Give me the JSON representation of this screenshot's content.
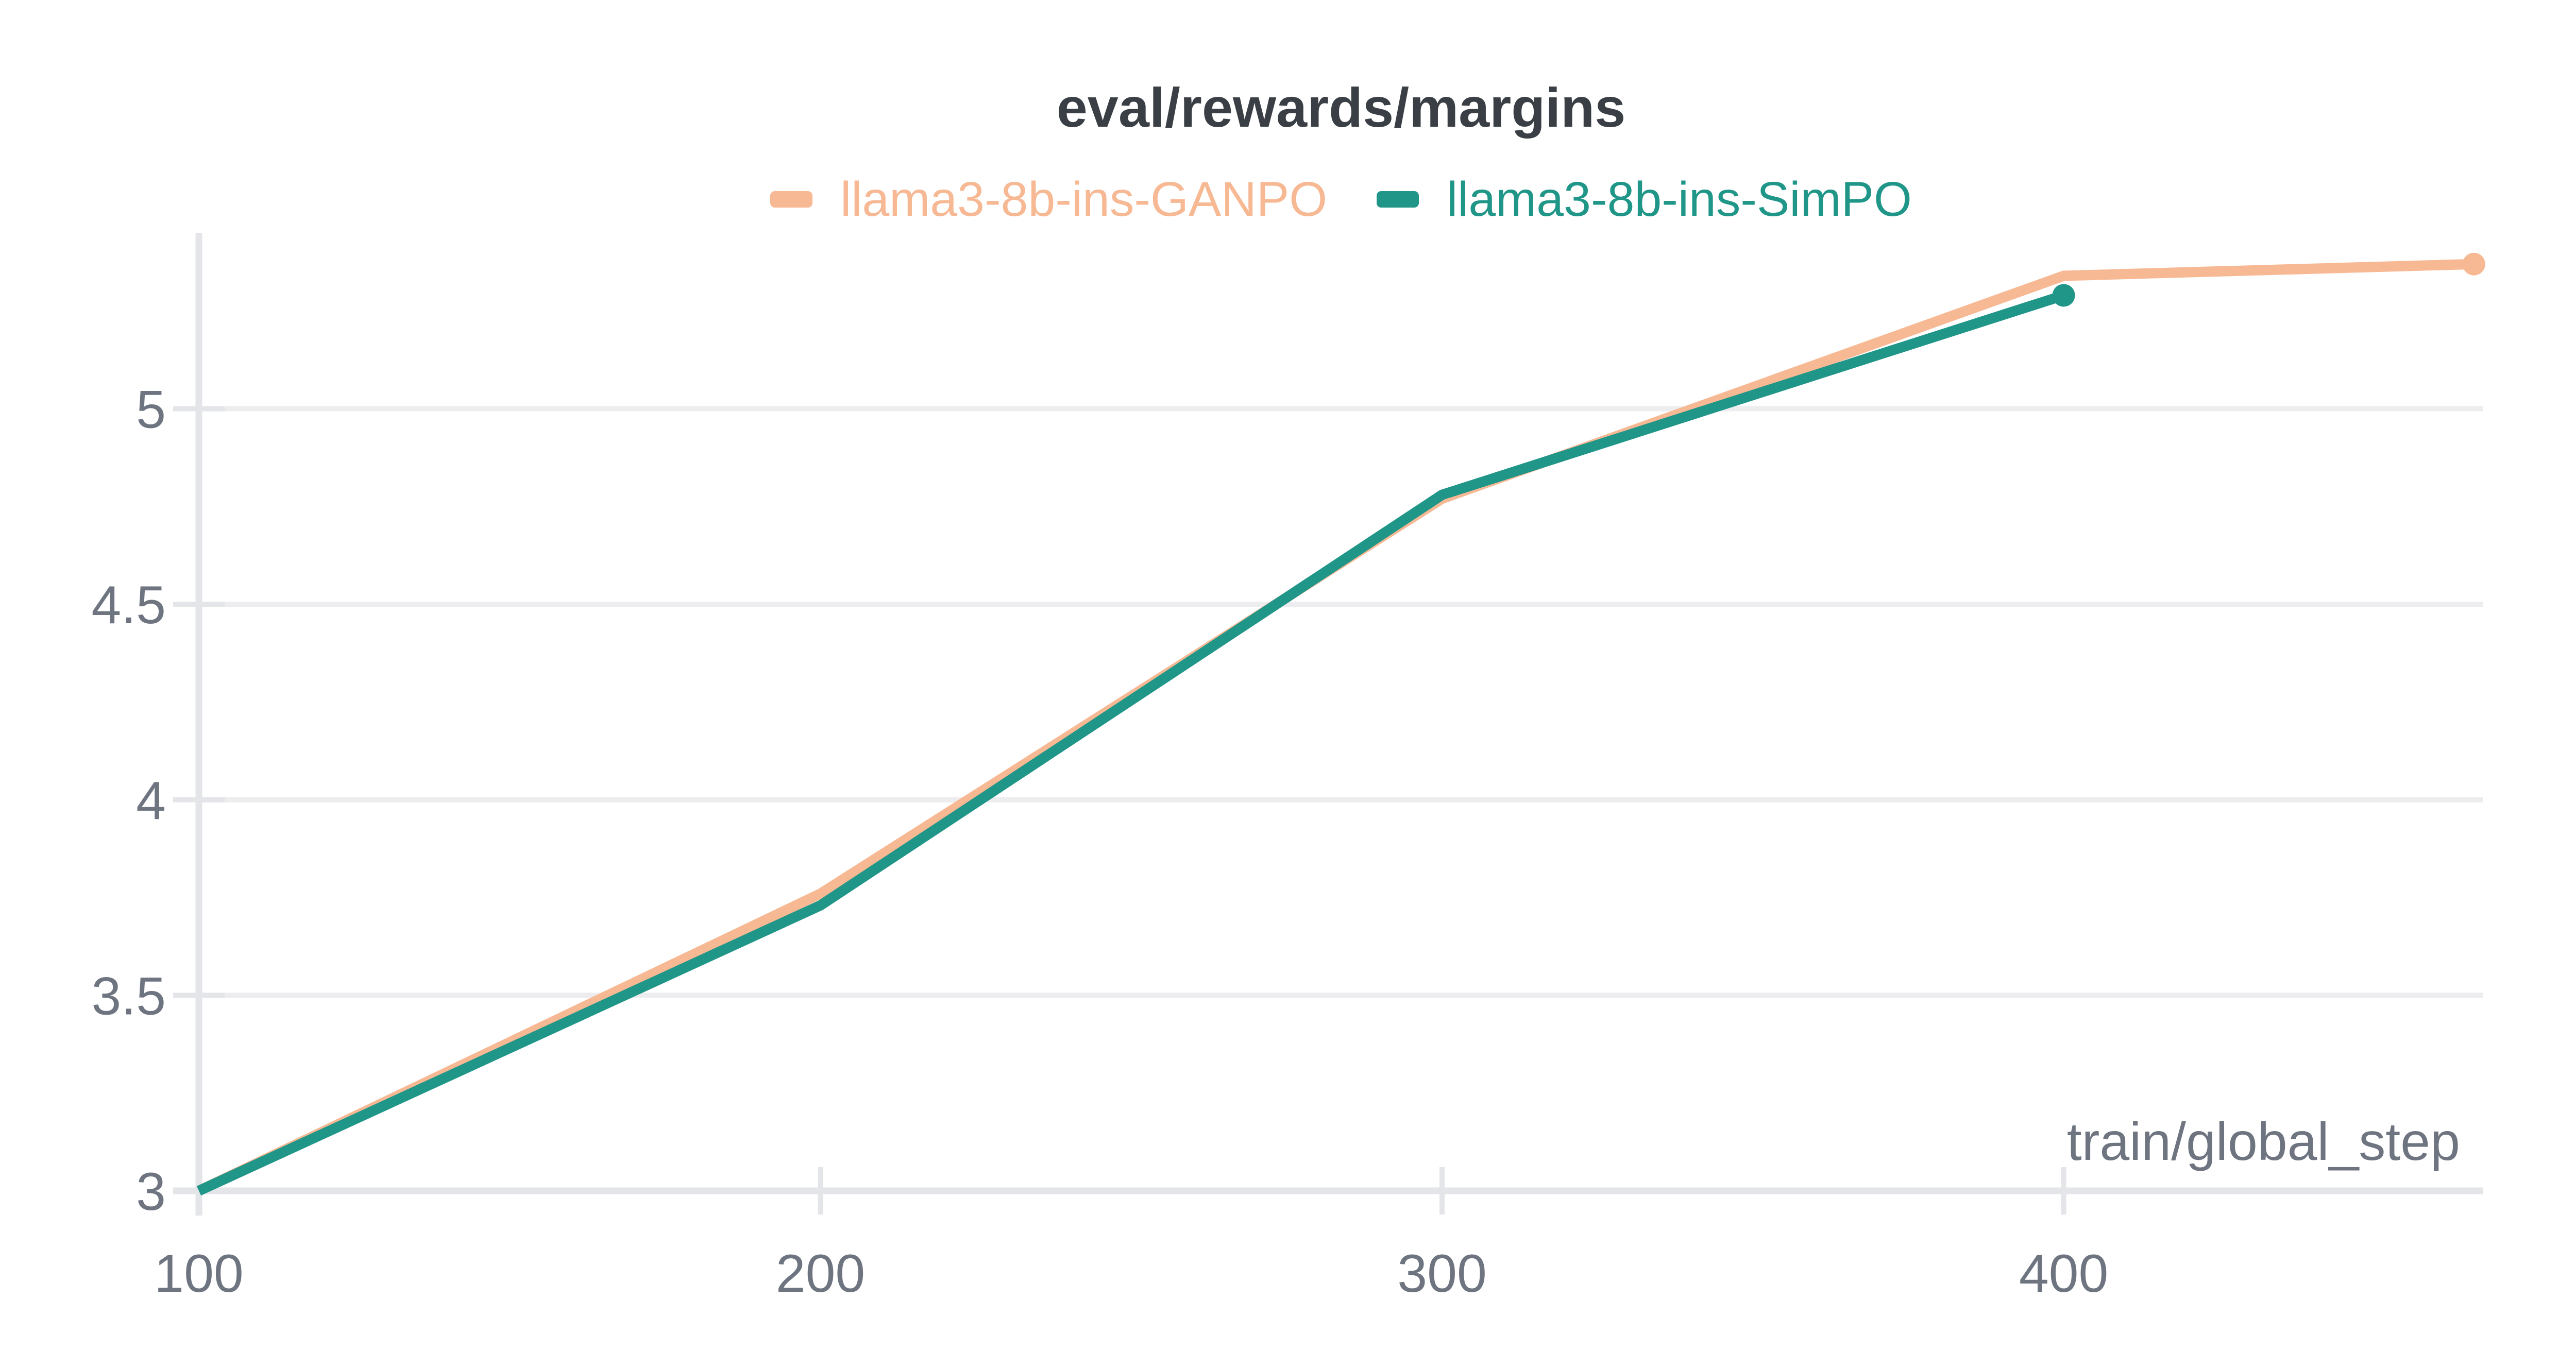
{
  "chart_data": {
    "type": "line",
    "title": "eval/rewards/margins",
    "xlabel": "train/global_step",
    "x_ticks": [
      100,
      200,
      300,
      400
    ],
    "y_ticks": [
      3,
      3.5,
      4,
      4.5,
      5
    ],
    "xlim": [
      100,
      467.5
    ],
    "ylim": [
      3,
      5.45
    ],
    "grid": "horizontal-only",
    "legend_position": "top-center",
    "series": [
      {
        "name": "llama3-8b-ins-GANPO",
        "color": "#f7b894",
        "x": [
          100,
          200,
          300,
          400,
          466
        ],
        "y": [
          3.0,
          3.76,
          4.77,
          5.34,
          5.37
        ],
        "end_marker": true
      },
      {
        "name": "llama3-8b-ins-SimPO",
        "color": "#1f9688",
        "x": [
          100,
          200,
          300,
          400
        ],
        "y": [
          3.0,
          3.73,
          4.78,
          5.29
        ],
        "end_marker": true
      }
    ],
    "style": {
      "title_color": "#3a3f45",
      "axis_text_color": "#6e7580",
      "grid_color": "#ededf0",
      "axis_line_color": "#e4e5e9",
      "background": "#ffffff"
    }
  }
}
